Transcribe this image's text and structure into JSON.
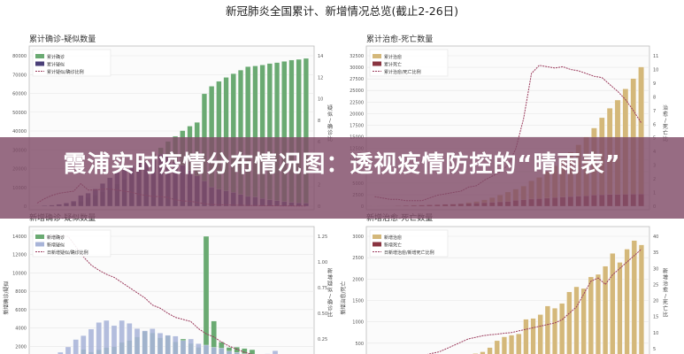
{
  "title": "新冠肺炎全国累计、新增情况总览(截止2-26日)",
  "banner": {
    "text": "霞浦实时疫情分布情况图：透视疫情防控的“晴雨表”"
  },
  "chart_data": [
    {
      "type": "bar",
      "title": "累计确诊-疑似数量",
      "ylabel_right": "疑似/确诊比",
      "legend": [
        "累计确诊",
        "累计疑似",
        "累计疑似/确诊比例"
      ],
      "legend_position": "top-left",
      "ylim": [
        0,
        80000
      ],
      "yticks": [
        "0",
        "10000",
        "20000",
        "30000",
        "40000",
        "50000",
        "60000",
        "70000",
        "80000"
      ],
      "y2ticks": [
        "0",
        "2",
        "4",
        "6",
        "8",
        "10",
        "12",
        "14"
      ],
      "colors": {
        "bar1": "#6aaa72",
        "bar2": "#4a3f78",
        "line": "#9b3a5c"
      },
      "series": [
        {
          "name": "累计确诊",
          "values": [
            300,
            440,
            570,
            830,
            1290,
            1980,
            2740,
            4500,
            5970,
            7700,
            9700,
            11800,
            14400,
            17200,
            20400,
            24300,
            28000,
            31100,
            34500,
            37200,
            40200,
            42600,
            44600,
            59800,
            63800,
            66400,
            68500,
            70500,
            72400,
            74200,
            74600,
            75100,
            75900,
            76400,
            77000,
            77700,
            78100,
            78600
          ]
        },
        {
          "name": "累计疑似",
          "values": [
            100,
            300,
            600,
            1000,
            1700,
            2700,
            5800,
            6900,
            9200,
            12100,
            15200,
            17900,
            19500,
            21600,
            23200,
            23300,
            24700,
            27700,
            26400,
            23600,
            21700,
            19000,
            16100,
            13400,
            10100,
            9000,
            8200,
            7300,
            6200,
            5200,
            4900,
            4100,
            3400,
            2900,
            2400,
            2000,
            1800,
            1600
          ]
        },
        {
          "name": "累计疑似/确诊比例",
          "values": [
            0.3,
            0.7,
            1.0,
            1.2,
            1.3,
            1.4,
            2.1,
            1.5,
            1.5,
            1.6,
            1.6,
            1.5,
            1.4,
            1.3,
            1.1,
            1.0,
            0.9,
            0.9,
            0.8,
            0.6,
            0.5,
            0.45,
            0.36,
            0.22,
            0.16,
            0.14,
            0.12,
            0.1,
            0.09,
            0.07,
            0.07,
            0.05,
            0.04,
            0.04,
            0.03,
            0.03,
            0.02,
            0.02
          ]
        }
      ]
    },
    {
      "type": "bar",
      "title": "累计治愈-死亡数量",
      "ylabel_right": "治愈/死亡比",
      "legend": [
        "累计治愈",
        "累计死亡",
        "累计治愈/死亡比例"
      ],
      "legend_position": "top-left",
      "ylim": [
        0,
        35000
      ],
      "yticks": [
        "0",
        "2500",
        "5000",
        "7500",
        "10000",
        "12500",
        "15000",
        "17500",
        "20000",
        "22500",
        "25000",
        "27500",
        "30000",
        "32500"
      ],
      "y2ticks": [
        "0",
        "1",
        "2",
        "3",
        "4",
        "5",
        "6",
        "7",
        "8",
        "9",
        "10",
        "11"
      ],
      "colors": {
        "bar1": "#d4b87a",
        "bar2": "#8a3440",
        "line": "#9b3a5c"
      },
      "series": [
        {
          "name": "累计治愈",
          "values": [
            30,
            35,
            40,
            50,
            60,
            80,
            110,
            190,
            280,
            370,
            500,
            630,
            900,
            1100,
            1500,
            2000,
            2600,
            3300,
            4000,
            4700,
            5900,
            6700,
            8100,
            9400,
            10800,
            12600,
            14300,
            16100,
            18200,
            20600,
            22800,
            24700,
            27300,
            29700,
            32400
          ]
        },
        {
          "name": "累计死亡",
          "values": [
            40,
            60,
            80,
            110,
            170,
            210,
            260,
            310,
            360,
            430,
            490,
            560,
            640,
            720,
            810,
            910,
            1020,
            1110,
            1360,
            1520,
            1660,
            1770,
            1870,
            2000,
            2120,
            2240,
            2340,
            2440,
            2590,
            2660,
            2710,
            2750,
            2780,
            2800,
            2840
          ]
        },
        {
          "name": "累计治愈/死亡比例",
          "values": [
            0.7,
            0.6,
            0.5,
            0.5,
            0.4,
            0.4,
            0.4,
            0.6,
            0.8,
            0.9,
            1.0,
            1.1,
            1.4,
            1.5,
            1.9,
            2.2,
            2.5,
            3.0,
            4.2,
            6.4,
            9.7,
            10.3,
            10.2,
            10.1,
            10.2,
            10.0,
            9.9,
            9.7,
            9.5,
            9.4,
            8.9,
            8.4,
            7.8,
            7.0,
            6.1
          ]
        }
      ]
    },
    {
      "type": "bar",
      "title": "新增确诊-疑似数量",
      "ylabel_left": "新增确诊/疑似",
      "ylabel_right": "新增疑似/确诊比",
      "legend": [
        "新增确诊",
        "新增疑似",
        "日新增疑似/确诊比例"
      ],
      "legend_position": "top-left",
      "ylim": [
        0,
        15000
      ],
      "yticks": [
        "0",
        "2000",
        "4000",
        "6000",
        "8000",
        "10000",
        "12000",
        "14000"
      ],
      "y2ticks": [
        "0.00",
        "0.25",
        "0.50",
        "0.75",
        "1.00",
        "1.25"
      ],
      "colors": {
        "bar1": "#6aaa72",
        "bar2": "#a8b4d8",
        "line": "#9b3a5c"
      },
      "series": [
        {
          "name": "新增确诊",
          "values": [
            130,
            150,
            260,
            460,
            690,
            770,
            1770,
            1460,
            1740,
            1980,
            2100,
            2590,
            2830,
            3230,
            3890,
            3700,
            3140,
            3400,
            2650,
            3000,
            2480,
            2020,
            15150,
            5090,
            2640,
            2010,
            2050,
            1890,
            1750,
            820,
            890,
            400,
            650,
            400,
            510,
            410
          ]
        },
        {
          "name": "新增疑似",
          "values": [
            250,
            560,
            1170,
            1450,
            2070,
            2940,
            3390,
            4150,
            4930,
            5170,
            4560,
            5170,
            4830,
            4210,
            3970,
            4200,
            3690,
            3440,
            3330,
            2810,
            3000,
            2450,
            2280,
            2020,
            1920,
            1570,
            1430,
            1280,
            1180,
            1090,
            1280,
            1620,
            900,
            580,
            430,
            340
          ]
        },
        {
          "name": "日新增疑似/确诊比例",
          "values": [
            1.4,
            1.45,
            1.42,
            1.35,
            1.25,
            1.15,
            1.05,
            0.97,
            0.92,
            0.88,
            0.85,
            0.8,
            0.75,
            0.7,
            0.65,
            0.58,
            0.55,
            0.5,
            0.46,
            0.44,
            0.42,
            0.35,
            0.3,
            0.27,
            0.22,
            0.18,
            0.15,
            0.12,
            0.1,
            0.07,
            0.05,
            0.03,
            0.02,
            0.02,
            0.01,
            0.01
          ]
        }
      ]
    },
    {
      "type": "bar",
      "title": "新增治愈-死亡数量",
      "ylabel_left": "新增治愈/死亡",
      "ylabel_right": "新增治愈/死亡比",
      "legend": [
        "新增治愈",
        "新增死亡",
        "日新增治愈/新增死亡比例"
      ],
      "legend_position": "top-left",
      "ylim": [
        0,
        3000
      ],
      "yticks": [
        "0",
        "500",
        "1000",
        "1500",
        "2000",
        "2500",
        "3000"
      ],
      "y2ticks": [
        "0",
        "5",
        "10",
        "15",
        "20",
        "25",
        "30",
        "35",
        "40"
      ],
      "colors": {
        "bar1": "#d4b87a",
        "bar2": "#8a3440",
        "line": "#9b3a5c"
      },
      "series": [
        {
          "name": "新增治愈",
          "values": [
            10,
            10,
            10,
            10,
            20,
            20,
            30,
            50,
            80,
            90,
            110,
            130,
            160,
            190,
            260,
            300,
            400,
            560,
            650,
            690,
            720,
            1060,
            1080,
            1170,
            1370,
            1320,
            1430,
            1700,
            1820,
            1780,
            2050,
            2110,
            2300,
            2600,
            2390,
            2700,
            2900,
            2800
          ]
        },
        {
          "name": "新增死亡",
          "values": [
            10,
            15,
            15,
            20,
            25,
            30,
            40,
            45,
            50,
            55,
            60,
            65,
            70,
            75,
            85,
            90,
            100,
            105,
            110,
            115,
            120,
            125,
            130,
            140,
            145,
            150,
            155,
            160,
            165,
            170,
            140,
            140,
            130,
            120,
            110,
            100,
            90,
            80
          ]
        },
        {
          "name": "日新增治愈/新增死亡比例",
          "values": [
            0.5,
            0.8,
            1.0,
            1.2,
            1.5,
            2.0,
            2.5,
            3.0,
            3.5,
            4.0,
            5.0,
            6.0,
            7.0,
            8.0,
            8.5,
            9.0,
            9.3,
            9.5,
            9.8,
            10.0,
            10.5,
            11.0,
            11.5,
            12.0,
            12.5,
            13.0,
            14.0,
            16.0,
            18.0,
            22.0,
            26.0,
            27.0,
            25.0,
            28.0,
            30.0,
            32.0,
            34.0,
            36.0
          ]
        }
      ]
    }
  ]
}
